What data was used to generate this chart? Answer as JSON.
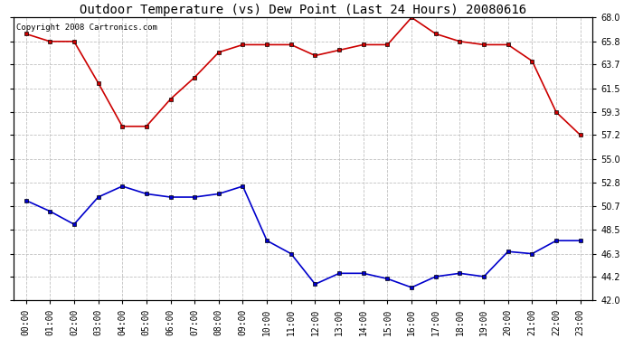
{
  "title": "Outdoor Temperature (vs) Dew Point (Last 24 Hours) 20080616",
  "copyright": "Copyright 2008 Cartronics.com",
  "hours": [
    "00:00",
    "01:00",
    "02:00",
    "03:00",
    "04:00",
    "05:00",
    "06:00",
    "07:00",
    "08:00",
    "09:00",
    "10:00",
    "11:00",
    "12:00",
    "13:00",
    "14:00",
    "15:00",
    "16:00",
    "17:00",
    "18:00",
    "19:00",
    "20:00",
    "21:00",
    "22:00",
    "23:00"
  ],
  "temp": [
    66.5,
    65.8,
    65.8,
    62.0,
    58.0,
    58.0,
    60.5,
    62.5,
    64.8,
    65.5,
    65.5,
    65.5,
    64.5,
    65.0,
    65.5,
    65.5,
    68.0,
    66.5,
    65.8,
    65.5,
    65.5,
    64.0,
    59.3,
    57.2
  ],
  "dew": [
    51.2,
    50.2,
    49.0,
    51.5,
    52.5,
    51.8,
    51.5,
    51.5,
    51.8,
    52.5,
    47.5,
    46.3,
    43.5,
    44.5,
    44.5,
    44.0,
    43.2,
    44.2,
    44.5,
    44.2,
    46.5,
    46.3,
    47.5,
    47.5
  ],
  "temp_color": "#cc0000",
  "dew_color": "#0000cc",
  "bg_color": "#ffffff",
  "grid_color": "#c0c0c0",
  "ylim": [
    42.0,
    68.0
  ],
  "yticks": [
    42.0,
    44.2,
    46.3,
    48.5,
    50.7,
    52.8,
    55.0,
    57.2,
    59.3,
    61.5,
    63.7,
    65.8,
    68.0
  ],
  "title_fontsize": 10,
  "copyright_fontsize": 6.5,
  "tick_fontsize": 7
}
